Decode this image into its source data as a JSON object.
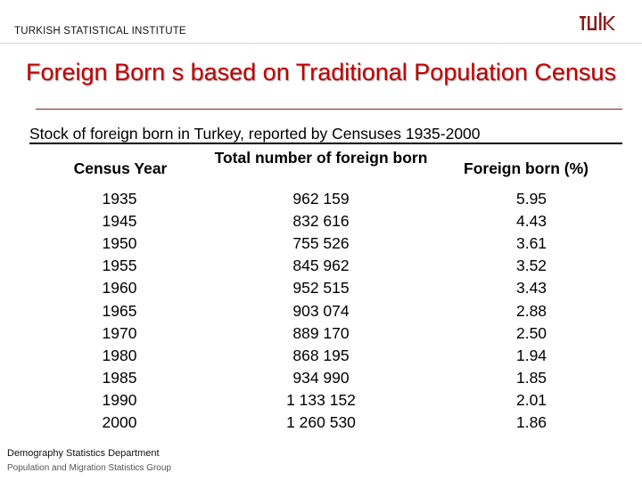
{
  "header": {
    "organization": "TURKISH STATISTICAL INSTITUTE",
    "logo_icon": "tuik-logo-icon",
    "logo_color": "#8c1a1a"
  },
  "title": "Foreign Born s based on Traditional Population Census",
  "subtitle": "Stock of foreign born in Turkey, reported by Censuses 1935-2000",
  "table": {
    "headers": {
      "year": "Census Year",
      "total": "Total number of foreign born",
      "pct": "Foreign born (%)"
    },
    "rows": [
      {
        "year": "1935",
        "total": "962 159",
        "pct": "5.95"
      },
      {
        "year": "1945",
        "total": "832 616",
        "pct": "4.43"
      },
      {
        "year": "1950",
        "total": "755 526",
        "pct": "3.61"
      },
      {
        "year": "1955",
        "total": "845 962",
        "pct": "3.52"
      },
      {
        "year": "1960",
        "total": "952 515",
        "pct": "3.43"
      },
      {
        "year": "1965",
        "total": "903 074",
        "pct": "2.88"
      },
      {
        "year": "1970",
        "total": "889 170",
        "pct": "2.50"
      },
      {
        "year": "1980",
        "total": "868 195",
        "pct": "1.94"
      },
      {
        "year": "1985",
        "total": "934 990",
        "pct": "1.85"
      },
      {
        "year": "1990",
        "total": "1 133 152",
        "pct": "2.01"
      },
      {
        "year": "2000",
        "total": "1 260 530",
        "pct": "1.86"
      }
    ]
  },
  "footer": {
    "department": "Demography Statistics Department",
    "group": "Population and Migration Statistics Group"
  },
  "colors": {
    "title": "#c00000",
    "accent": "#8c1a1a"
  }
}
